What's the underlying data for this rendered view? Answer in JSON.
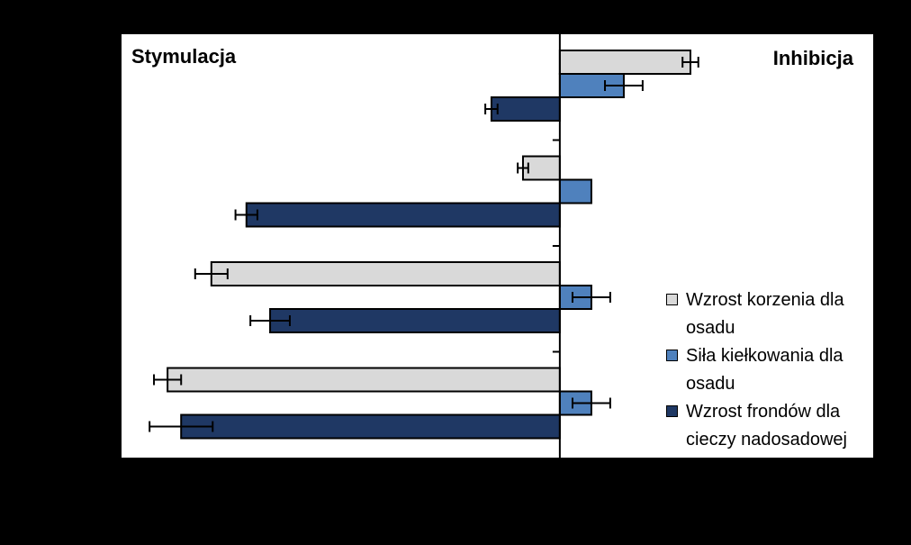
{
  "chart_data": {
    "type": "bar",
    "orientation": "horizontal",
    "annotations": [
      "Stymulacja",
      "Inhibicja"
    ],
    "categories": [
      null,
      null,
      null,
      null
    ],
    "xlim": [
      -100,
      71.5
    ],
    "series": [
      {
        "name": "Wzrost korzenia dla osadu",
        "color": "#d9d9d9",
        "values": [
          29.8,
          -8.4,
          -79.5,
          -89.5
        ],
        "errors": [
          1.8,
          1.2,
          3.7,
          3.1
        ]
      },
      {
        "name": "Siła kiełkowania dla osadu",
        "color": "#4f81bd",
        "values": [
          14.6,
          7.2,
          7.2,
          7.2
        ],
        "errors": [
          4.3,
          null,
          4.3,
          4.3
        ]
      },
      {
        "name": "Wzrost frondów dla cieczy nadosadowej",
        "color": "#1f3864",
        "values": [
          -15.6,
          -71.5,
          -66.1,
          -86.4
        ],
        "errors": [
          1.4,
          2.5,
          4.5,
          7.2
        ]
      }
    ]
  }
}
